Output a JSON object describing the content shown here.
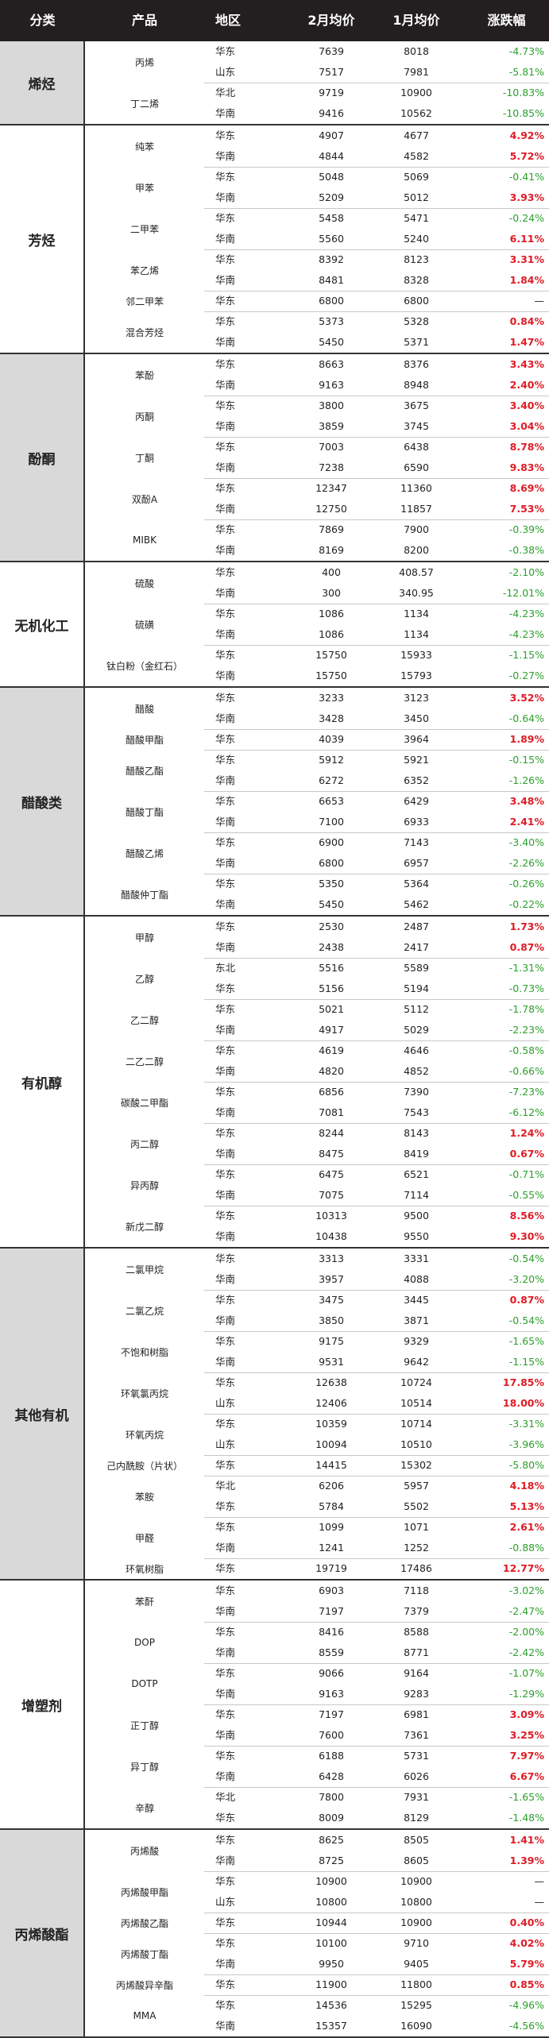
{
  "columns": [
    "分类",
    "产品",
    "地区",
    "2月均价",
    "1月均价",
    "涨跌幅"
  ],
  "colors": {
    "up": "#e01b24",
    "down": "#2ca02c",
    "header_bg": "#231f20",
    "category_bg": "#d9d9d9"
  },
  "groups": [
    {
      "category": "烯烃",
      "products": [
        {
          "name": "丙烯",
          "rows": [
            [
              "华东",
              "7639",
              "8018",
              "-4.73%"
            ],
            [
              "山东",
              "7517",
              "7981",
              "-5.81%"
            ]
          ]
        },
        {
          "name": "丁二烯",
          "rows": [
            [
              "华北",
              "9719",
              "10900",
              "-10.83%"
            ],
            [
              "华南",
              "9416",
              "10562",
              "-10.85%"
            ]
          ]
        }
      ]
    },
    {
      "category": "芳烃",
      "products": [
        {
          "name": "纯苯",
          "rows": [
            [
              "华东",
              "4907",
              "4677",
              "4.92%"
            ],
            [
              "华南",
              "4844",
              "4582",
              "5.72%"
            ]
          ]
        },
        {
          "name": "甲苯",
          "rows": [
            [
              "华东",
              "5048",
              "5069",
              "-0.41%"
            ],
            [
              "华南",
              "5209",
              "5012",
              "3.93%"
            ]
          ]
        },
        {
          "name": "二甲苯",
          "rows": [
            [
              "华东",
              "5458",
              "5471",
              "-0.24%"
            ],
            [
              "华南",
              "5560",
              "5240",
              "6.11%"
            ]
          ]
        },
        {
          "name": "苯乙烯",
          "rows": [
            [
              "华东",
              "8392",
              "8123",
              "3.31%"
            ],
            [
              "华南",
              "8481",
              "8328",
              "1.84%"
            ]
          ]
        },
        {
          "name": "邻二甲苯",
          "rows": [
            [
              "华东",
              "6800",
              "6800",
              "—"
            ]
          ]
        },
        {
          "name": "混合芳烃",
          "rows": [
            [
              "华东",
              "5373",
              "5328",
              "0.84%"
            ],
            [
              "华南",
              "5450",
              "5371",
              "1.47%"
            ]
          ]
        }
      ]
    },
    {
      "category": "酚酮",
      "products": [
        {
          "name": "苯酚",
          "rows": [
            [
              "华东",
              "8663",
              "8376",
              "3.43%"
            ],
            [
              "华南",
              "9163",
              "8948",
              "2.40%"
            ]
          ]
        },
        {
          "name": "丙酮",
          "rows": [
            [
              "华东",
              "3800",
              "3675",
              "3.40%"
            ],
            [
              "华南",
              "3859",
              "3745",
              "3.04%"
            ]
          ]
        },
        {
          "name": "丁酮",
          "rows": [
            [
              "华东",
              "7003",
              "6438",
              "8.78%"
            ],
            [
              "华南",
              "7238",
              "6590",
              "9.83%"
            ]
          ]
        },
        {
          "name": "双酚A",
          "rows": [
            [
              "华东",
              "12347",
              "11360",
              "8.69%"
            ],
            [
              "华南",
              "12750",
              "11857",
              "7.53%"
            ]
          ]
        },
        {
          "name": "MIBK",
          "rows": [
            [
              "华东",
              "7869",
              "7900",
              "-0.39%"
            ],
            [
              "华南",
              "8169",
              "8200",
              "-0.38%"
            ]
          ]
        }
      ]
    },
    {
      "category": "无机化工",
      "products": [
        {
          "name": "硫酸",
          "rows": [
            [
              "华东",
              "400",
              "408.57",
              "-2.10%"
            ],
            [
              "华南",
              "300",
              "340.95",
              "-12.01%"
            ]
          ]
        },
        {
          "name": "硫磺",
          "rows": [
            [
              "华东",
              "1086",
              "1134",
              "-4.23%"
            ],
            [
              "华南",
              "1086",
              "1134",
              "-4.23%"
            ]
          ]
        },
        {
          "name": "钛白粉（金红石）",
          "rows": [
            [
              "华东",
              "15750",
              "15933",
              "-1.15%"
            ],
            [
              "华南",
              "15750",
              "15793",
              "-0.27%"
            ]
          ]
        }
      ]
    },
    {
      "category": "醋酸类",
      "products": [
        {
          "name": "醋酸",
          "rows": [
            [
              "华东",
              "3233",
              "3123",
              "3.52%"
            ],
            [
              "华南",
              "3428",
              "3450",
              "-0.64%"
            ]
          ]
        },
        {
          "name": "醋酸甲酯",
          "rows": [
            [
              "华东",
              "4039",
              "3964",
              "1.89%"
            ]
          ]
        },
        {
          "name": "醋酸乙酯",
          "rows": [
            [
              "华东",
              "5912",
              "5921",
              "-0.15%"
            ],
            [
              "华南",
              "6272",
              "6352",
              "-1.26%"
            ]
          ]
        },
        {
          "name": "醋酸丁酯",
          "rows": [
            [
              "华东",
              "6653",
              "6429",
              "3.48%"
            ],
            [
              "华南",
              "7100",
              "6933",
              "2.41%"
            ]
          ]
        },
        {
          "name": "醋酸乙烯",
          "rows": [
            [
              "华东",
              "6900",
              "7143",
              "-3.40%"
            ],
            [
              "华南",
              "6800",
              "6957",
              "-2.26%"
            ]
          ]
        },
        {
          "name": "醋酸仲丁酯",
          "rows": [
            [
              "华东",
              "5350",
              "5364",
              "-0.26%"
            ],
            [
              "华南",
              "5450",
              "5462",
              "-0.22%"
            ]
          ]
        }
      ]
    },
    {
      "category": "有机醇",
      "products": [
        {
          "name": "甲醇",
          "rows": [
            [
              "华东",
              "2530",
              "2487",
              "1.73%"
            ],
            [
              "华南",
              "2438",
              "2417",
              "0.87%"
            ]
          ]
        },
        {
          "name": "乙醇",
          "rows": [
            [
              "东北",
              "5516",
              "5589",
              "-1.31%"
            ],
            [
              "华东",
              "5156",
              "5194",
              "-0.73%"
            ]
          ]
        },
        {
          "name": "乙二醇",
          "rows": [
            [
              "华东",
              "5021",
              "5112",
              "-1.78%"
            ],
            [
              "华南",
              "4917",
              "5029",
              "-2.23%"
            ]
          ]
        },
        {
          "name": "二乙二醇",
          "rows": [
            [
              "华东",
              "4619",
              "4646",
              "-0.58%"
            ],
            [
              "华南",
              "4820",
              "4852",
              "-0.66%"
            ]
          ]
        },
        {
          "name": "碳酸二甲酯",
          "rows": [
            [
              "华东",
              "6856",
              "7390",
              "-7.23%"
            ],
            [
              "华南",
              "7081",
              "7543",
              "-6.12%"
            ]
          ]
        },
        {
          "name": "丙二醇",
          "rows": [
            [
              "华东",
              "8244",
              "8143",
              "1.24%"
            ],
            [
              "华南",
              "8475",
              "8419",
              "0.67%"
            ]
          ]
        },
        {
          "name": "异丙醇",
          "rows": [
            [
              "华东",
              "6475",
              "6521",
              "-0.71%"
            ],
            [
              "华南",
              "7075",
              "7114",
              "-0.55%"
            ]
          ]
        },
        {
          "name": "新戊二醇",
          "rows": [
            [
              "华东",
              "10313",
              "9500",
              "8.56%"
            ],
            [
              "华南",
              "10438",
              "9550",
              "9.30%"
            ]
          ]
        }
      ]
    },
    {
      "category": "其他有机",
      "products": [
        {
          "name": "二氯甲烷",
          "rows": [
            [
              "华东",
              "3313",
              "3331",
              "-0.54%"
            ],
            [
              "华南",
              "3957",
              "4088",
              "-3.20%"
            ]
          ]
        },
        {
          "name": "二氯乙烷",
          "rows": [
            [
              "华东",
              "3475",
              "3445",
              "0.87%"
            ],
            [
              "华南",
              "3850",
              "3871",
              "-0.54%"
            ]
          ]
        },
        {
          "name": "不饱和树脂",
          "rows": [
            [
              "华东",
              "9175",
              "9329",
              "-1.65%"
            ],
            [
              "华南",
              "9531",
              "9642",
              "-1.15%"
            ]
          ]
        },
        {
          "name": "环氧氯丙烷",
          "rows": [
            [
              "华东",
              "12638",
              "10724",
              "17.85%"
            ],
            [
              "山东",
              "12406",
              "10514",
              "18.00%"
            ]
          ]
        },
        {
          "name": "环氧丙烷",
          "rows": [
            [
              "华东",
              "10359",
              "10714",
              "-3.31%"
            ],
            [
              "山东",
              "10094",
              "10510",
              "-3.96%"
            ]
          ]
        },
        {
          "name": "己内酰胺（片状）",
          "rows": [
            [
              "华东",
              "14415",
              "15302",
              "-5.80%"
            ]
          ]
        },
        {
          "name": "苯胺",
          "rows": [
            [
              "华北",
              "6206",
              "5957",
              "4.18%"
            ],
            [
              "华东",
              "5784",
              "5502",
              "5.13%"
            ]
          ]
        },
        {
          "name": "甲醛",
          "rows": [
            [
              "华东",
              "1099",
              "1071",
              "2.61%"
            ],
            [
              "华南",
              "1241",
              "1252",
              "-0.88%"
            ]
          ]
        },
        {
          "name": "环氧树脂",
          "rows": [
            [
              "华东",
              "19719",
              "17486",
              "12.77%"
            ]
          ]
        }
      ]
    },
    {
      "category": "增塑剂",
      "products": [
        {
          "name": "苯酐",
          "rows": [
            [
              "华东",
              "6903",
              "7118",
              "-3.02%"
            ],
            [
              "华南",
              "7197",
              "7379",
              "-2.47%"
            ]
          ]
        },
        {
          "name": "DOP",
          "rows": [
            [
              "华东",
              "8416",
              "8588",
              "-2.00%"
            ],
            [
              "华南",
              "8559",
              "8771",
              "-2.42%"
            ]
          ]
        },
        {
          "name": "DOTP",
          "rows": [
            [
              "华东",
              "9066",
              "9164",
              "-1.07%"
            ],
            [
              "华南",
              "9163",
              "9283",
              "-1.29%"
            ]
          ]
        },
        {
          "name": "正丁醇",
          "rows": [
            [
              "华东",
              "7197",
              "6981",
              "3.09%"
            ],
            [
              "华南",
              "7600",
              "7361",
              "3.25%"
            ]
          ]
        },
        {
          "name": "异丁醇",
          "rows": [
            [
              "华东",
              "6188",
              "5731",
              "7.97%"
            ],
            [
              "华南",
              "6428",
              "6026",
              "6.67%"
            ]
          ]
        },
        {
          "name": "辛醇",
          "rows": [
            [
              "华北",
              "7800",
              "7931",
              "-1.65%"
            ],
            [
              "华东",
              "8009",
              "8129",
              "-1.48%"
            ]
          ]
        }
      ]
    },
    {
      "category": "丙烯酸酯",
      "products": [
        {
          "name": "丙烯酸",
          "rows": [
            [
              "华东",
              "8625",
              "8505",
              "1.41%"
            ],
            [
              "华南",
              "8725",
              "8605",
              "1.39%"
            ]
          ]
        },
        {
          "name": "丙烯酸甲酯",
          "rows": [
            [
              "华东",
              "10900",
              "10900",
              "—"
            ],
            [
              "山东",
              "10800",
              "10800",
              "—"
            ]
          ]
        },
        {
          "name": "丙烯酸乙酯",
          "rows": [
            [
              "华东",
              "10944",
              "10900",
              "0.40%"
            ]
          ]
        },
        {
          "name": "丙烯酸丁酯",
          "rows": [
            [
              "华东",
              "10100",
              "9710",
              "4.02%"
            ],
            [
              "华南",
              "9950",
              "9405",
              "5.79%"
            ]
          ]
        },
        {
          "name": "丙烯酸异辛酯",
          "rows": [
            [
              "华东",
              "11900",
              "11800",
              "0.85%"
            ]
          ]
        },
        {
          "name": "MMA",
          "rows": [
            [
              "华东",
              "14536",
              "15295",
              "-4.96%"
            ],
            [
              "华南",
              "15357",
              "16090",
              "-4.56%"
            ]
          ]
        }
      ]
    }
  ]
}
